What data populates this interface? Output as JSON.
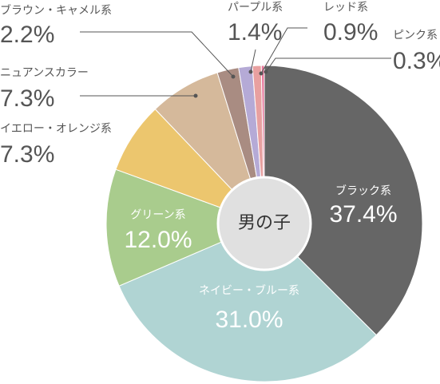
{
  "chart_data": {
    "type": "pie",
    "title": "男の子",
    "categories": [
      "ブラック系",
      "ネイビー・ブルー系",
      "グリーン系",
      "イエロー・オレンジ系",
      "ニュアンスカラー",
      "ブラウン・キャメル系",
      "パープル系",
      "レッド系",
      "ピンク系"
    ],
    "values": [
      37.4,
      31.0,
      12.0,
      7.3,
      7.3,
      2.2,
      1.4,
      0.9,
      0.3
    ],
    "value_labels": [
      "37.4%",
      "31.0%",
      "12.0%",
      "7.3%",
      "7.3%",
      "2.2%",
      "1.4%",
      "0.9%",
      "0.3%"
    ],
    "colors": [
      "#666666",
      "#b0d4d3",
      "#a9cc8d",
      "#ecc66e",
      "#d5b99b",
      "#a98c82",
      "#b5aad6",
      "#e8a0a0",
      "#e7779b"
    ]
  }
}
